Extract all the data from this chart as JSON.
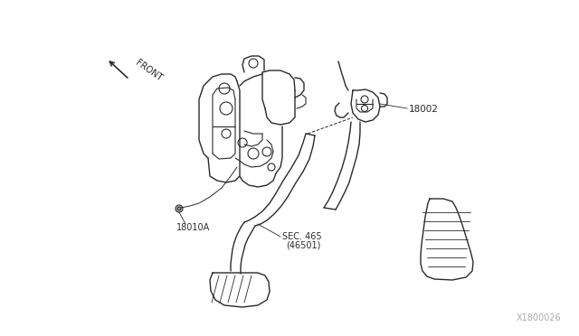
{
  "background_color": "#ffffff",
  "figure_width": 6.4,
  "figure_height": 3.72,
  "dpi": 100,
  "line_color": "#2a2a2a",
  "label_color": "#2a2a2a",
  "watermark": "X1800026",
  "front_label": "FRONT",
  "label_18002": "18002",
  "label_18010A": "18010A",
  "label_sec": "SEC. 465",
  "label_sec2": "(46501)"
}
